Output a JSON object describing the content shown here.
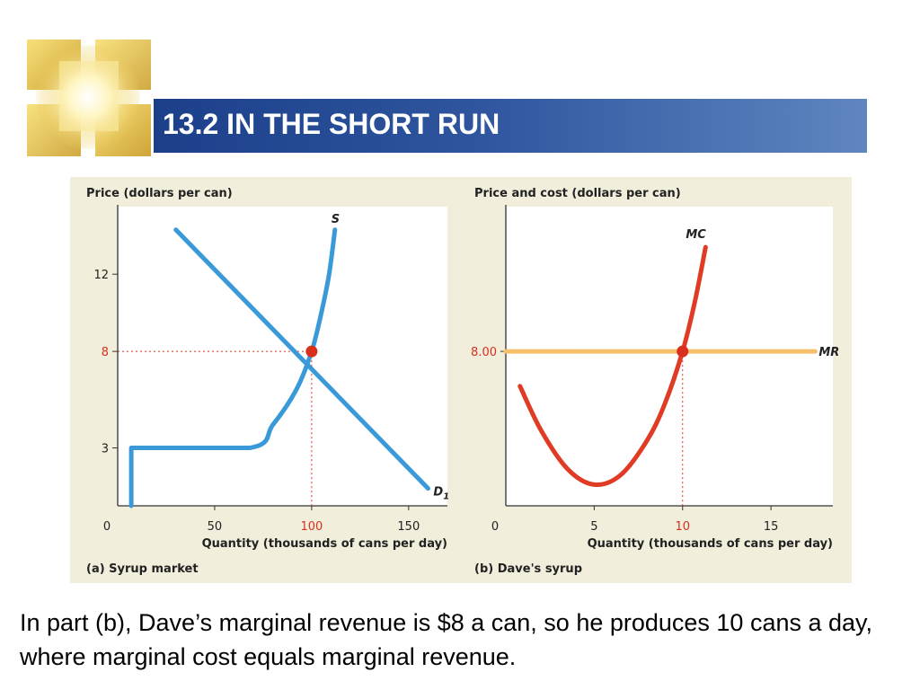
{
  "slide": {
    "title": "13.2 IN THE SHORT RUN",
    "caption": "In part (b), Dave’s marginal revenue is $8 a can, so he produces 10 cans a day, where marginal cost equals marginal revenue."
  },
  "colors": {
    "title_bar": "#2e559e",
    "figure_bg": "#f1eedc",
    "plot_bg": "#ffffff",
    "demand_supply": "#3a9ad9",
    "marginal_cost": "#e03b24",
    "marginal_revenue": "#f6bf6a",
    "equilibrium": "#d9301e"
  },
  "icons": {
    "logo": "sparkle-square-logo-icon"
  },
  "chart_data": [
    {
      "type": "line",
      "panel_label": "(a) Syrup market",
      "ylabel": "Price (dollars per can)",
      "xlabel": "Quantity (thousands of cans per day)",
      "xlim": [
        0,
        170
      ],
      "ylim": [
        0,
        15.5
      ],
      "xticks": [
        0,
        50,
        100,
        150
      ],
      "xtick_labels": [
        "0",
        "50",
        "100",
        "150"
      ],
      "yticks": [
        3,
        8,
        12
      ],
      "ytick_labels": [
        "3",
        "8",
        "12"
      ],
      "series": [
        {
          "name": "S",
          "label": "S",
          "points": [
            [
              7,
              0
            ],
            [
              7,
              3
            ],
            [
              68,
              3
            ],
            [
              80,
              4.2
            ],
            [
              92,
              6
            ],
            [
              100,
              8
            ],
            [
              105,
              10
            ],
            [
              109,
              12
            ],
            [
              112,
              14.3
            ]
          ]
        },
        {
          "name": "D1",
          "label": "D",
          "label_sub": "1",
          "points": [
            [
              30,
              14.3
            ],
            [
              160,
              0.9
            ]
          ]
        }
      ],
      "equilibrium": {
        "x": 100,
        "y": 8
      },
      "guides": [
        {
          "x": 100,
          "y": 8
        }
      ],
      "highlight_ticks": [
        "100",
        "8"
      ]
    },
    {
      "type": "line",
      "panel_label": "(b) Dave's syrup",
      "ylabel": "Price and cost (dollars per can)",
      "xlabel": "Quantity (thousands of cans per day)",
      "xlim": [
        0,
        18.5
      ],
      "ylim": [
        0,
        15.5
      ],
      "xticks": [
        0,
        5,
        10,
        15
      ],
      "xtick_labels": [
        "0",
        "5",
        "10",
        "15"
      ],
      "yticks": [
        8
      ],
      "ytick_labels": [
        "8.00"
      ],
      "series": [
        {
          "name": "MC",
          "label": "MC",
          "points": [
            [
              0.8,
              6.2
            ],
            [
              2,
              3.9
            ],
            [
              3.5,
              1.9
            ],
            [
              5,
              1.1
            ],
            [
              6.5,
              1.6
            ],
            [
              8,
              3.4
            ],
            [
              9,
              5.3
            ],
            [
              10,
              8
            ],
            [
              10.7,
              10.6
            ],
            [
              11.3,
              13.4
            ]
          ]
        },
        {
          "name": "MR",
          "label": "MR",
          "points": [
            [
              0,
              8
            ],
            [
              17.5,
              8
            ]
          ]
        }
      ],
      "equilibrium": {
        "x": 10,
        "y": 8
      },
      "guides": [
        {
          "x": 10,
          "y": 8,
          "vertical_only": true
        }
      ],
      "highlight_ticks": [
        "10"
      ]
    }
  ]
}
